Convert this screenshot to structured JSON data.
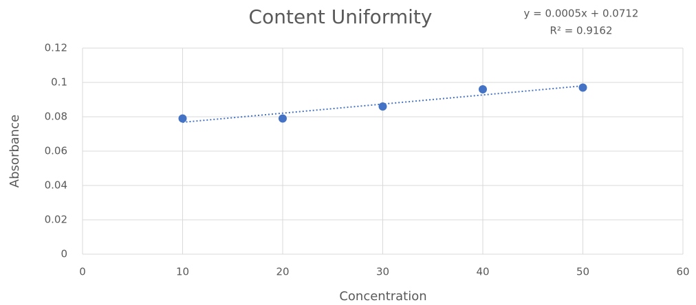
{
  "chart_data": {
    "type": "scatter",
    "title": "Content Uniformity",
    "annotations": [
      "y = 0.0005x + 0.0712",
      "R² = 0.9162"
    ],
    "x_label": "Concentration",
    "y_label": "Absorbance",
    "series": [
      {
        "name": "Absorbance",
        "color": "#4472c4",
        "x": [
          10,
          20,
          30,
          40,
          50
        ],
        "values": [
          0.079,
          0.079,
          0.086,
          0.096,
          0.097
        ]
      }
    ],
    "trendline": "linear",
    "trendline_style": "dotted",
    "xlim": [
      0,
      60
    ],
    "xticks": [
      0,
      10,
      20,
      30,
      40,
      50,
      60
    ],
    "ylim": [
      0,
      0.12
    ],
    "yticks": [
      0,
      0.02,
      0.04,
      0.06,
      0.08,
      0.1,
      0.12
    ],
    "grid": true
  }
}
